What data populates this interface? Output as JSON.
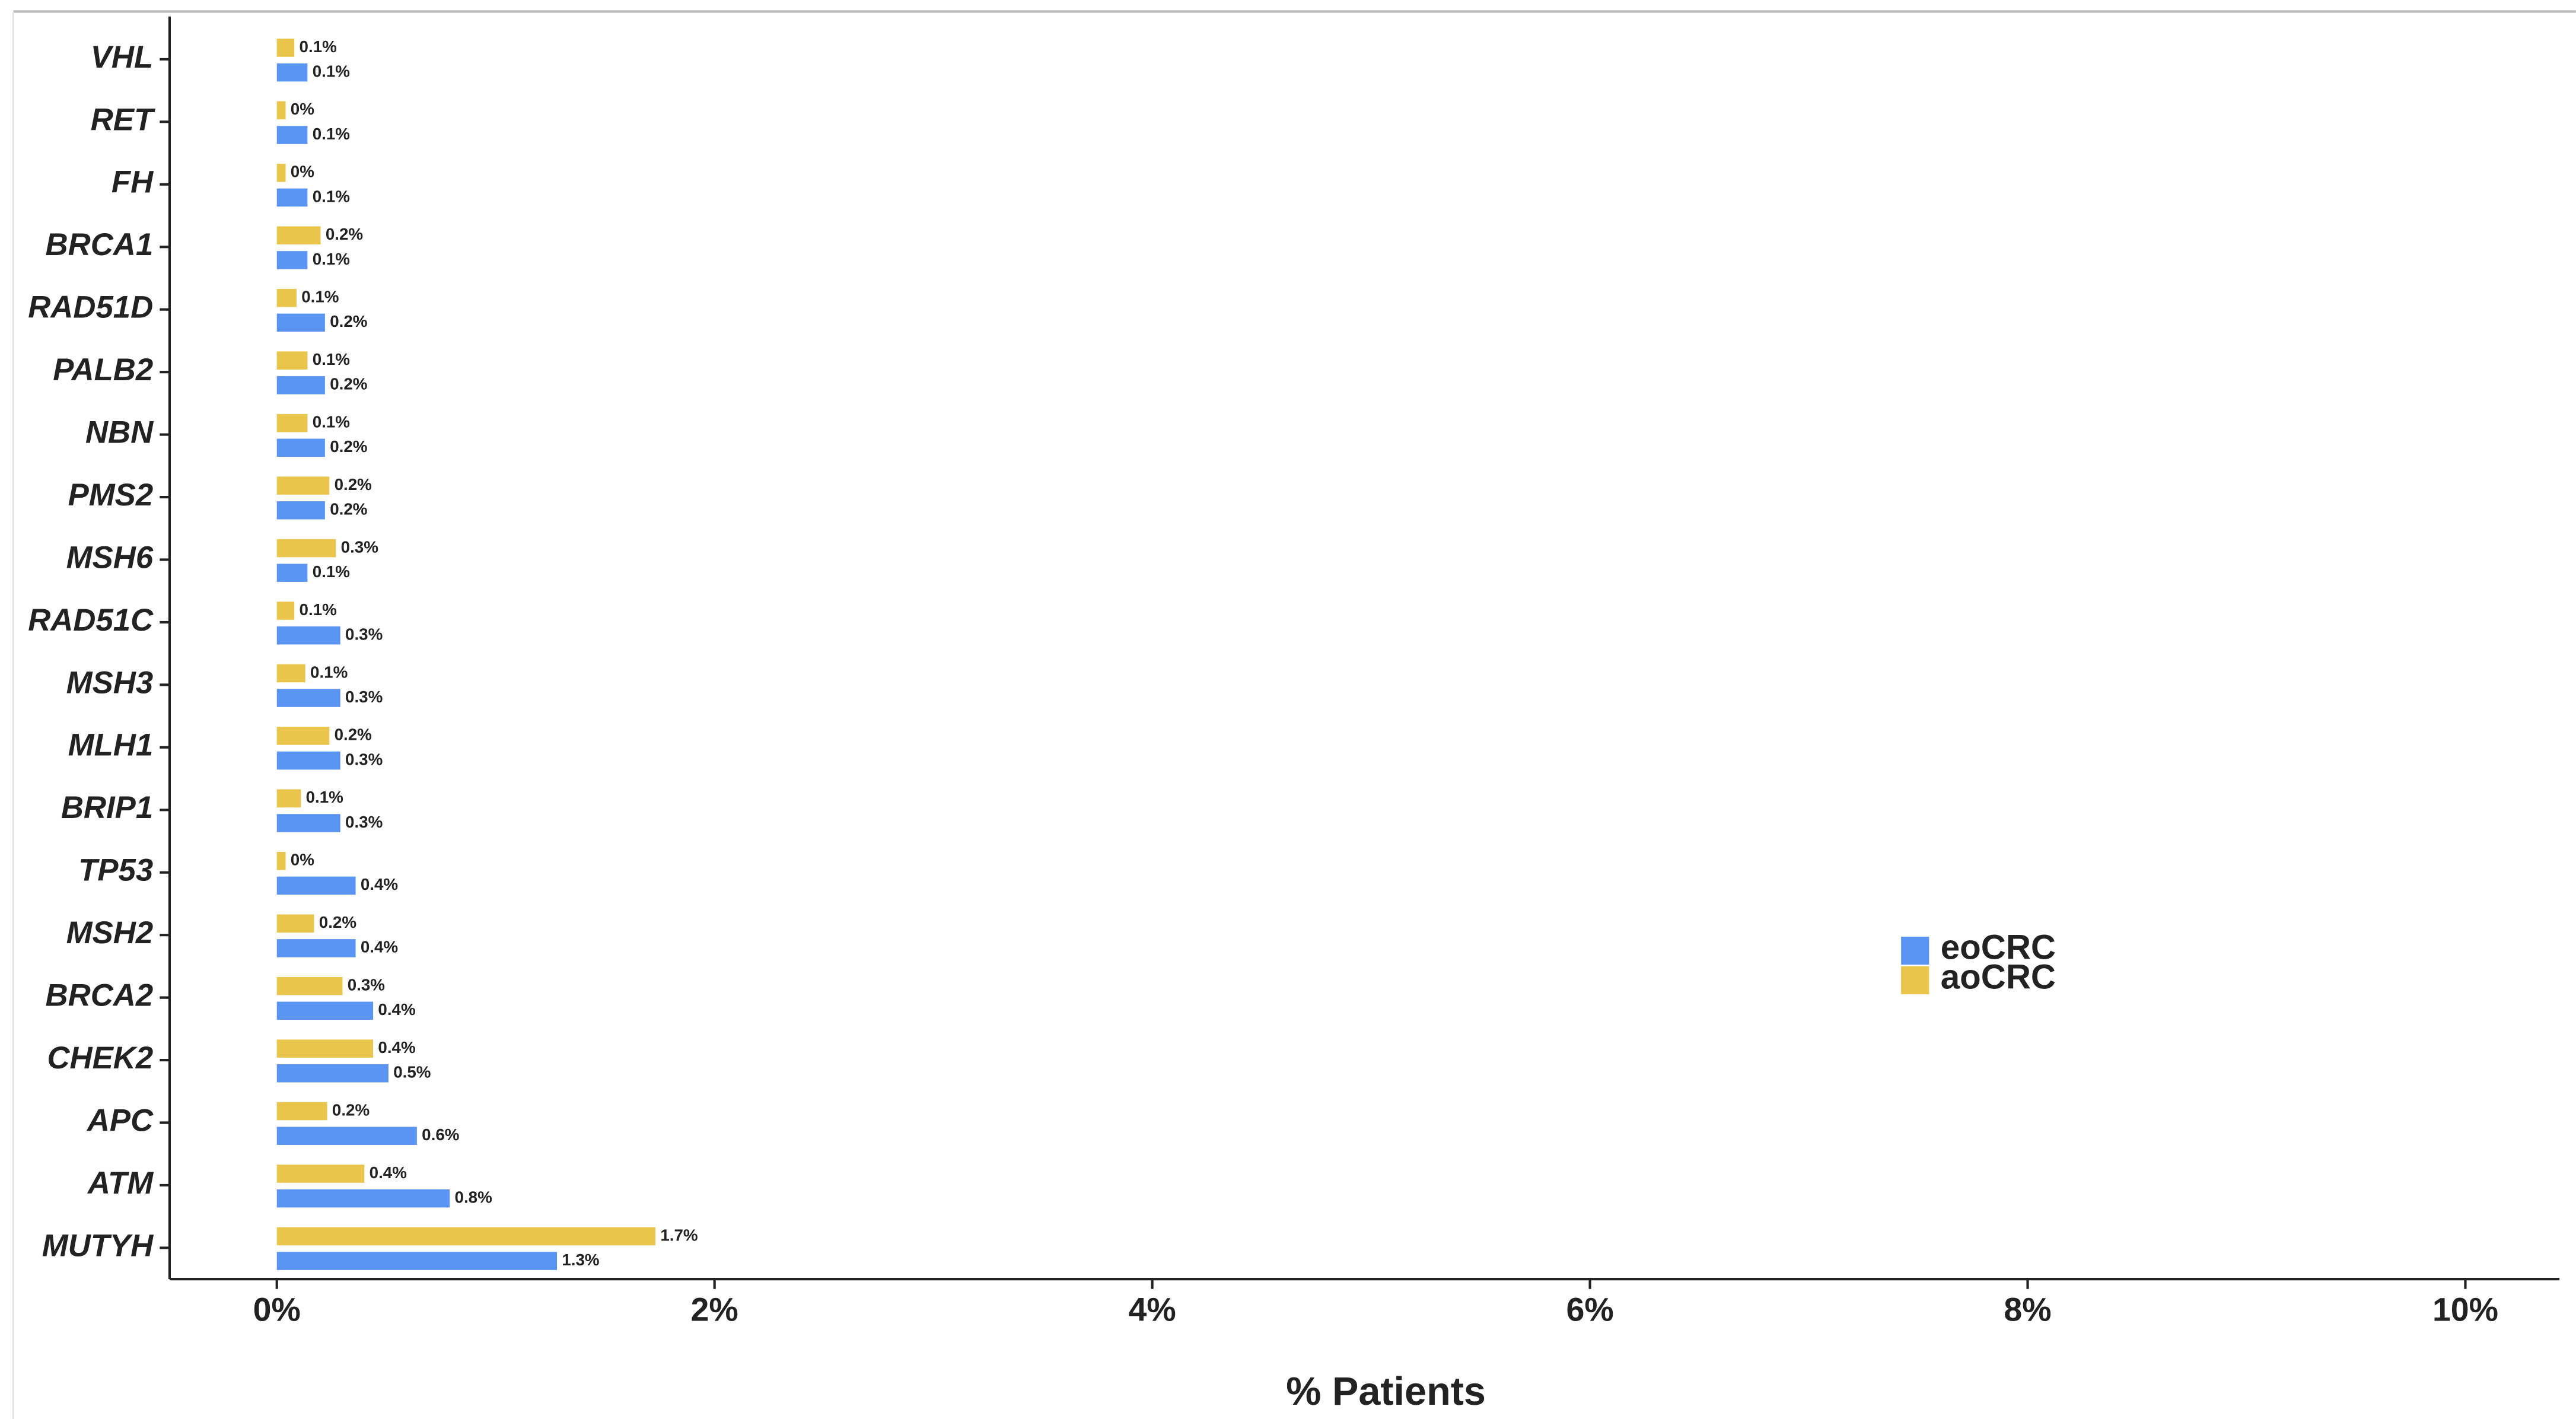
{
  "chart_data": {
    "type": "bar",
    "orientation": "horizontal",
    "x_label": "% Patients",
    "categories": [
      "VHL",
      "RET",
      "FH",
      "BRCA1",
      "RAD51D",
      "PALB2",
      "NBN",
      "PMS2",
      "MSH6",
      "RAD51C",
      "MSH3",
      "MLH1",
      "BRIP1",
      "TP53",
      "MSH2",
      "BRCA2",
      "CHEK2",
      "APC",
      "ATM",
      "MUTYH"
    ],
    "series": [
      {
        "name": "eoCRC",
        "color": "#5b95f3",
        "values": [
          0.14,
          0.14,
          0.14,
          0.14,
          0.22,
          0.22,
          0.22,
          0.22,
          0.14,
          0.29,
          0.29,
          0.29,
          0.29,
          0.36,
          0.36,
          0.44,
          0.51,
          0.64,
          0.79,
          1.28
        ],
        "value_labels": [
          "0.1%",
          "0.1%",
          "0.1%",
          "0.1%",
          "0.2%",
          "0.2%",
          "0.2%",
          "0.2%",
          "0.1%",
          "0.3%",
          "0.3%",
          "0.3%",
          "0.3%",
          "0.4%",
          "0.4%",
          "0.4%",
          "0.5%",
          "0.6%",
          "0.8%",
          "1.3%"
        ]
      },
      {
        "name": "aoCRC",
        "color": "#e9c54c",
        "values": [
          0.08,
          0.04,
          0.04,
          0.2,
          0.09,
          0.14,
          0.14,
          0.24,
          0.27,
          0.08,
          0.13,
          0.24,
          0.11,
          0.04,
          0.17,
          0.3,
          0.44,
          0.23,
          0.4,
          1.73
        ],
        "value_labels": [
          "0.1%",
          "0%",
          "0%",
          "0.2%",
          "0.1%",
          "0.1%",
          "0.1%",
          "0.2%",
          "0.3%",
          "0.1%",
          "0.1%",
          "0.2%",
          "0.1%",
          "0%",
          "0.2%",
          "0.3%",
          "0.4%",
          "0.2%",
          "0.4%",
          "1.7%"
        ]
      }
    ],
    "xlim": [
      -0.49,
      10.43
    ],
    "xticks": [
      {
        "value": 0,
        "label": "0%"
      },
      {
        "value": 2,
        "label": "2%"
      },
      {
        "value": 4,
        "label": "4%"
      },
      {
        "value": 6,
        "label": "6%"
      },
      {
        "value": 8,
        "label": "8%"
      },
      {
        "value": 10,
        "label": "10%"
      }
    ],
    "grid": false,
    "legend_position": "right"
  }
}
